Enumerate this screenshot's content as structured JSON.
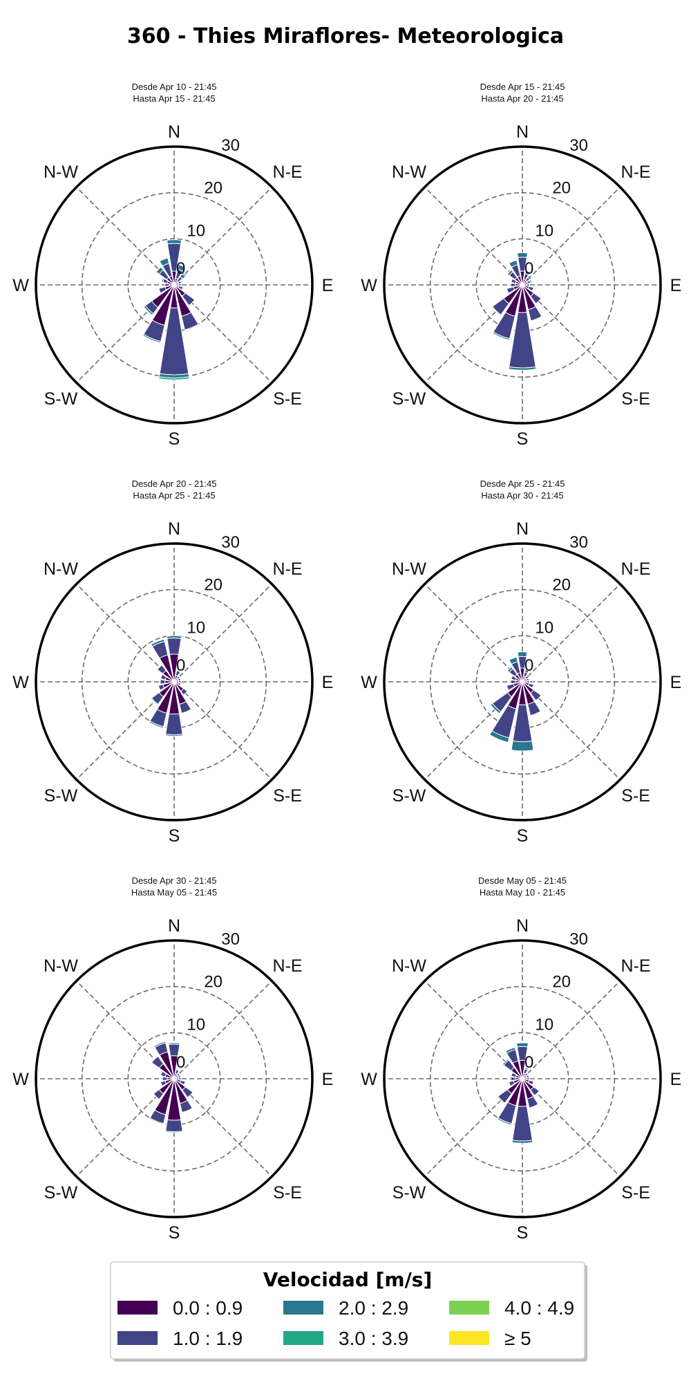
{
  "chart_data": {
    "type": "windrose",
    "title": "360 - Thies Miraflores- Meteorologica",
    "directions": [
      "N",
      "NNE",
      "NE",
      "ENE",
      "E",
      "ESE",
      "SE",
      "SSE",
      "S",
      "SSW",
      "SW",
      "WSW",
      "W",
      "WNW",
      "NW",
      "NNW"
    ],
    "cardinal_labels": [
      "N",
      "N-E",
      "E",
      "S-E",
      "S",
      "S-W",
      "W",
      "N-W"
    ],
    "radial_ticks": [
      0,
      10,
      20,
      30
    ],
    "rlim": [
      0,
      30
    ],
    "legend": {
      "title": "Velocidad [m/s]",
      "placement": "bottom-center",
      "bins": [
        {
          "label": "0.0 : 0.9",
          "color": "#440154"
        },
        {
          "label": "1.0 : 1.9",
          "color": "#414487"
        },
        {
          "label": "2.0 : 2.9",
          "color": "#2a788e"
        },
        {
          "label": "3.0 : 3.9",
          "color": "#22a884"
        },
        {
          "label": "4.0 : 4.9",
          "color": "#7ad151"
        },
        {
          "label": "≥ 5",
          "color": "#fde725"
        }
      ]
    },
    "panels": [
      {
        "subtitle": [
          "Desde Apr 10 - 21:45",
          "Hasta Apr 15 - 21:45"
        ],
        "values": [
          [
            3,
            6,
            0.8,
            0,
            0,
            0
          ],
          [
            1.5,
            2,
            1,
            0,
            0,
            0
          ],
          [
            1,
            1.2,
            0.8,
            0.3,
            0,
            0
          ],
          [
            1,
            0.6,
            0.2,
            0,
            0,
            0
          ],
          [
            1,
            0.5,
            0,
            0,
            0,
            0
          ],
          [
            1,
            1,
            0,
            0,
            0,
            0
          ],
          [
            3,
            2.5,
            0,
            0,
            0,
            0
          ],
          [
            7,
            3,
            0,
            0,
            0,
            0
          ],
          [
            5,
            14.5,
            0.7,
            0.4,
            0,
            0
          ],
          [
            9,
            3.6,
            0.3,
            0,
            0,
            0
          ],
          [
            6,
            1.7,
            0.4,
            0.2,
            0,
            0
          ],
          [
            2,
            1.4,
            0,
            0,
            0,
            0
          ],
          [
            1,
            1,
            0,
            0,
            0,
            0
          ],
          [
            1.5,
            1,
            0.3,
            0,
            0,
            0
          ],
          [
            2,
            2,
            0.8,
            0,
            0,
            0
          ],
          [
            2,
            2.8,
            1.2,
            0,
            0,
            0
          ]
        ]
      },
      {
        "subtitle": [
          "Desde Apr 15 - 21:45",
          "Hasta Apr 20 - 21:45"
        ],
        "values": [
          [
            3,
            3,
            1,
            0,
            0,
            0
          ],
          [
            1.3,
            1.2,
            0.7,
            0,
            0,
            0
          ],
          [
            1.2,
            0.8,
            0.5,
            0,
            0,
            0
          ],
          [
            1.2,
            0.6,
            0.3,
            0,
            0,
            0
          ],
          [
            1,
            0.5,
            0,
            0,
            0,
            0
          ],
          [
            1.5,
            1,
            0,
            0,
            0,
            0
          ],
          [
            3,
            2,
            0,
            0,
            0,
            0
          ],
          [
            5.5,
            2.5,
            0,
            0,
            0,
            0
          ],
          [
            6,
            12,
            0.5,
            0,
            0,
            0
          ],
          [
            7,
            5,
            0.3,
            0,
            0,
            0
          ],
          [
            5,
            3,
            0.2,
            0,
            0,
            0
          ],
          [
            2,
            1.5,
            0,
            0,
            0,
            0
          ],
          [
            1.5,
            1,
            0,
            0,
            0,
            0
          ],
          [
            1.5,
            1,
            0,
            0,
            0,
            0
          ],
          [
            2,
            1.5,
            0.5,
            0,
            0,
            0
          ],
          [
            2,
            2.5,
            1,
            0,
            0,
            0
          ]
        ]
      },
      {
        "subtitle": [
          "Desde Apr 20 - 21:45",
          "Hasta Apr 25 - 21:45"
        ],
        "values": [
          [
            6,
            3.5,
            0.5,
            0,
            0,
            0
          ],
          [
            1.5,
            1,
            0,
            0,
            0,
            0
          ],
          [
            1,
            0.5,
            0,
            0,
            0,
            0
          ],
          [
            1,
            0.5,
            0,
            0,
            0,
            0
          ],
          [
            1,
            0.5,
            0,
            0,
            0,
            0
          ],
          [
            1,
            0.5,
            0,
            0,
            0,
            0
          ],
          [
            2.5,
            1,
            0,
            0,
            0,
            0
          ],
          [
            5,
            2,
            0,
            0,
            0,
            0
          ],
          [
            7,
            4.5,
            0.3,
            0,
            0,
            0
          ],
          [
            7,
            3,
            0.3,
            0,
            0,
            0
          ],
          [
            4,
            2,
            0.2,
            0,
            0,
            0
          ],
          [
            2.5,
            1,
            0,
            0,
            0,
            0
          ],
          [
            2,
            1,
            0,
            0,
            0,
            0
          ],
          [
            2,
            1,
            0,
            0,
            0,
            0
          ],
          [
            3,
            1.5,
            0,
            0,
            0,
            0
          ],
          [
            6,
            3,
            0.5,
            0,
            0,
            0
          ]
        ]
      },
      {
        "subtitle": [
          "Desde Apr 25 - 21:45",
          "Hasta Apr 30 - 21:45"
        ],
        "values": [
          [
            3,
            2.5,
            1,
            0,
            0,
            0
          ],
          [
            1.2,
            1,
            0.5,
            0,
            0,
            0
          ],
          [
            1,
            0.6,
            0.3,
            0,
            0,
            0
          ],
          [
            1,
            0.5,
            0,
            0,
            0,
            0
          ],
          [
            1,
            0.5,
            0,
            0,
            0,
            0
          ],
          [
            1.5,
            1,
            0,
            0,
            0,
            0
          ],
          [
            3,
            2,
            0,
            0,
            0,
            0
          ],
          [
            5,
            2.5,
            0,
            0,
            0,
            0
          ],
          [
            5,
            8,
            2,
            0,
            0,
            0
          ],
          [
            6,
            6.5,
            1,
            0,
            0,
            0
          ],
          [
            4,
            4,
            0.5,
            0,
            0,
            0
          ],
          [
            2,
            1.5,
            0,
            0,
            0,
            0
          ],
          [
            1.5,
            1,
            0,
            0,
            0,
            0
          ],
          [
            1.5,
            1,
            0,
            0,
            0,
            0
          ],
          [
            2,
            1.5,
            0.5,
            0,
            0,
            0
          ],
          [
            2,
            2.5,
            1,
            0,
            0,
            0
          ]
        ]
      },
      {
        "subtitle": [
          "Desde Apr 30 - 21:45",
          "Hasta May 05 - 21:45"
        ],
        "values": [
          [
            5,
            2.5,
            0.3,
            0,
            0,
            0
          ],
          [
            1.2,
            0.8,
            0,
            0,
            0,
            0
          ],
          [
            1,
            0.5,
            0,
            0,
            0,
            0
          ],
          [
            1,
            0.5,
            0,
            0,
            0,
            0
          ],
          [
            1,
            0.5,
            0,
            0,
            0,
            0
          ],
          [
            1.5,
            1,
            0,
            0,
            0,
            0
          ],
          [
            3,
            2,
            0,
            0,
            0,
            0
          ],
          [
            5.5,
            2,
            0,
            0,
            0,
            0
          ],
          [
            9,
            2.5,
            0.2,
            0,
            0,
            0
          ],
          [
            8,
            2,
            0.2,
            0,
            0,
            0
          ],
          [
            4,
            1.5,
            0,
            0,
            0,
            0
          ],
          [
            2,
            1,
            0,
            0,
            0,
            0
          ],
          [
            1.5,
            1,
            0,
            0,
            0,
            0
          ],
          [
            2,
            1,
            0,
            0,
            0,
            0
          ],
          [
            4,
            2,
            0,
            0,
            0,
            0
          ],
          [
            6,
            2,
            0.3,
            0,
            0,
            0
          ]
        ]
      },
      {
        "subtitle": [
          "Desde May 05 - 21:45",
          "Hasta May 10 - 21:45"
        ],
        "values": [
          [
            4,
            3,
            0.8,
            0,
            0,
            0
          ],
          [
            1.2,
            1,
            0.3,
            0,
            0,
            0
          ],
          [
            1,
            0.5,
            0.2,
            0,
            0,
            0
          ],
          [
            1,
            0.5,
            0,
            0,
            0,
            0
          ],
          [
            1,
            0.5,
            0,
            0,
            0,
            0
          ],
          [
            1.5,
            1,
            0,
            0,
            0,
            0
          ],
          [
            3,
            1.5,
            0,
            0,
            0,
            0
          ],
          [
            4.5,
            2,
            0,
            0,
            0,
            0
          ],
          [
            6,
            7.5,
            0.5,
            0,
            0,
            0
          ],
          [
            6,
            4,
            0.3,
            0,
            0,
            0
          ],
          [
            4,
            2.5,
            0.2,
            0,
            0,
            0
          ],
          [
            2,
            1,
            0,
            0,
            0,
            0
          ],
          [
            1.5,
            1,
            0,
            0,
            0,
            0
          ],
          [
            1.5,
            1,
            0,
            0,
            0,
            0
          ],
          [
            3,
            2,
            0.3,
            0,
            0,
            0
          ],
          [
            4,
            2.5,
            0.5,
            0,
            0,
            0
          ]
        ]
      }
    ]
  }
}
